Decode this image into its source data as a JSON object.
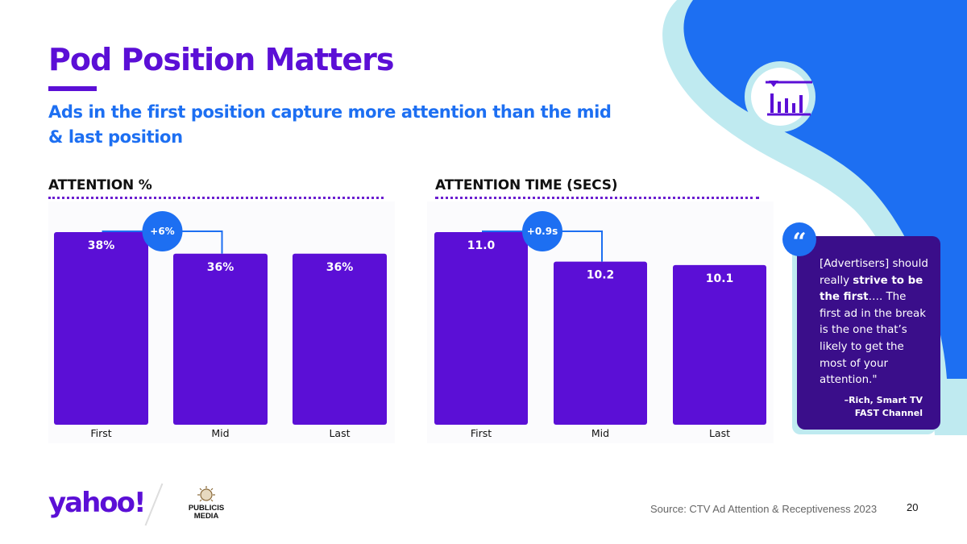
{
  "title": "Pod Position Matters",
  "subtitle": "Ads in the first position capture more attention  than the mid & last position",
  "colors": {
    "purple": "#5b0fd6",
    "blue": "#1d6ff2",
    "dark_purple": "#3a0e8a",
    "light_cyan": "#bfeaf0"
  },
  "chart_data": [
    {
      "type": "bar",
      "title": "ATTENTION %",
      "categories": [
        "First",
        "Mid",
        "Last"
      ],
      "values": [
        38,
        36,
        36
      ],
      "labels": [
        "38%",
        "36%",
        "36%"
      ],
      "ylim": [
        0,
        40
      ],
      "annotation": {
        "label": "+6%",
        "from": "First",
        "to": "Mid"
      }
    },
    {
      "type": "bar",
      "title": "ATTENTION TIME (SECS)",
      "categories": [
        "First",
        "Mid",
        "Last"
      ],
      "values": [
        11.0,
        10.2,
        10.1
      ],
      "labels": [
        "11.0",
        "10.2",
        "10.1"
      ],
      "ylim": [
        0,
        12
      ],
      "annotation": {
        "label": "+0.9s",
        "from": "First",
        "to": "Mid"
      }
    }
  ],
  "quote": {
    "badge_icon": "quote-mark-icon",
    "badge_glyph": "“",
    "part1": "[Advertisers] should really ",
    "bold": "strive to be the first",
    "part2": "…. The first ad in the break is the one that’s likely to get the most of your attention.\"",
    "author_line1": "–Rich, Smart TV",
    "author_line2": "FAST Channel"
  },
  "footer": {
    "yahoo_logo": "yahoo!",
    "publicis_logo": "PUBLICIS MEDIA",
    "publicis_line1": "PUBLICIS",
    "publicis_line2": "MEDIA",
    "source": "Source: CTV Ad Attention & Receptiveness 2023",
    "page_number": "20"
  }
}
